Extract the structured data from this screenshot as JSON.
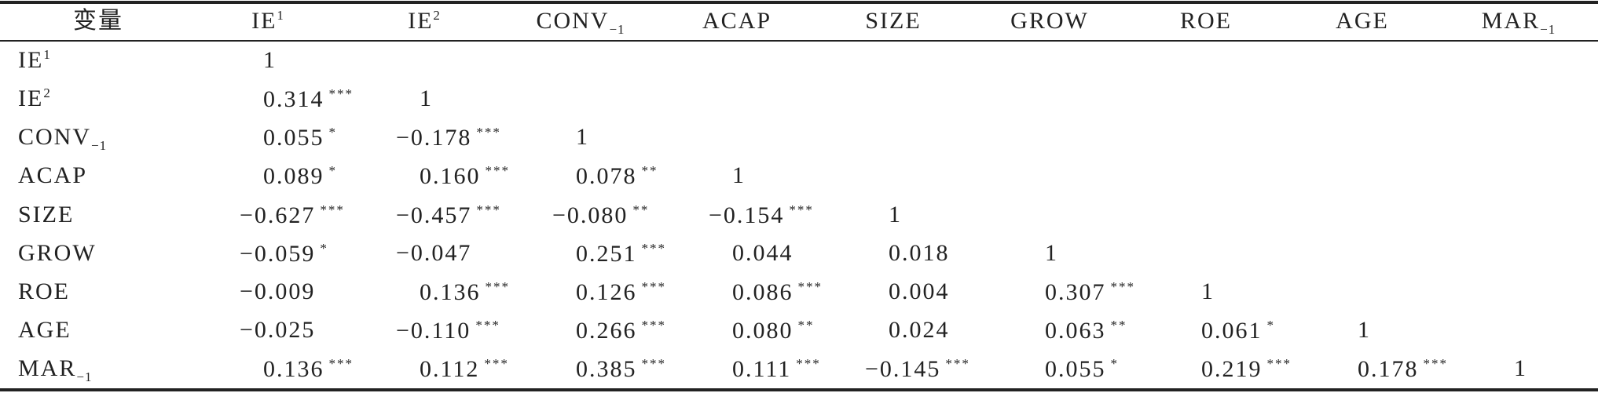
{
  "table": {
    "columns": [
      {
        "text": "变量"
      },
      {
        "text": "IE",
        "sup": "1"
      },
      {
        "text": "IE",
        "sup": "2"
      },
      {
        "text": "CONV",
        "sub": "−1"
      },
      {
        "text": "ACAP"
      },
      {
        "text": "SIZE"
      },
      {
        "text": "GROW"
      },
      {
        "text": "ROE"
      },
      {
        "text": "AGE"
      },
      {
        "text": "MAR",
        "sub": "−1"
      }
    ],
    "rows": [
      {
        "label": {
          "text": "IE",
          "sup": "1"
        },
        "cells": [
          {
            "value": "1"
          }
        ]
      },
      {
        "label": {
          "text": "IE",
          "sup": "2"
        },
        "cells": [
          {
            "value": "0.314",
            "stars": "***"
          },
          {
            "value": "1"
          }
        ]
      },
      {
        "label": {
          "text": "CONV",
          "sub": "−1"
        },
        "cells": [
          {
            "value": "0.055",
            "stars": "*"
          },
          {
            "value": "−0.178",
            "stars": "***"
          },
          {
            "value": "1"
          }
        ]
      },
      {
        "label": {
          "text": "ACAP"
        },
        "cells": [
          {
            "value": "0.089",
            "stars": "*"
          },
          {
            "value": "0.160",
            "stars": "***"
          },
          {
            "value": "0.078",
            "stars": "**"
          },
          {
            "value": "1"
          }
        ]
      },
      {
        "label": {
          "text": "SIZE"
        },
        "cells": [
          {
            "value": "−0.627",
            "stars": "***"
          },
          {
            "value": "−0.457",
            "stars": "***"
          },
          {
            "value": "−0.080",
            "stars": "**"
          },
          {
            "value": "−0.154",
            "stars": "***"
          },
          {
            "value": "1"
          }
        ]
      },
      {
        "label": {
          "text": "GROW"
        },
        "cells": [
          {
            "value": "−0.059",
            "stars": "*"
          },
          {
            "value": "−0.047"
          },
          {
            "value": "0.251",
            "stars": "***"
          },
          {
            "value": "0.044"
          },
          {
            "value": "0.018"
          },
          {
            "value": "1"
          }
        ]
      },
      {
        "label": {
          "text": "ROE"
        },
        "cells": [
          {
            "value": "−0.009"
          },
          {
            "value": "0.136",
            "stars": "***"
          },
          {
            "value": "0.126",
            "stars": "***"
          },
          {
            "value": "0.086",
            "stars": "***"
          },
          {
            "value": "0.004"
          },
          {
            "value": "0.307",
            "stars": "***"
          },
          {
            "value": "1"
          }
        ]
      },
      {
        "label": {
          "text": "AGE"
        },
        "cells": [
          {
            "value": "−0.025"
          },
          {
            "value": "−0.110",
            "stars": "***"
          },
          {
            "value": "0.266",
            "stars": "***"
          },
          {
            "value": "0.080",
            "stars": "**"
          },
          {
            "value": "0.024"
          },
          {
            "value": "0.063",
            "stars": "**"
          },
          {
            "value": "0.061",
            "stars": "*"
          },
          {
            "value": "1"
          }
        ]
      },
      {
        "label": {
          "text": "MAR",
          "sub": "−1"
        },
        "cells": [
          {
            "value": "0.136",
            "stars": "***"
          },
          {
            "value": "0.112",
            "stars": "***"
          },
          {
            "value": "0.385",
            "stars": "***"
          },
          {
            "value": "0.111",
            "stars": "***"
          },
          {
            "value": "−0.145",
            "stars": "***"
          },
          {
            "value": "0.055",
            "stars": "*"
          },
          {
            "value": "0.219",
            "stars": "***"
          },
          {
            "value": "0.178",
            "stars": "***"
          },
          {
            "value": "1"
          }
        ]
      }
    ]
  }
}
